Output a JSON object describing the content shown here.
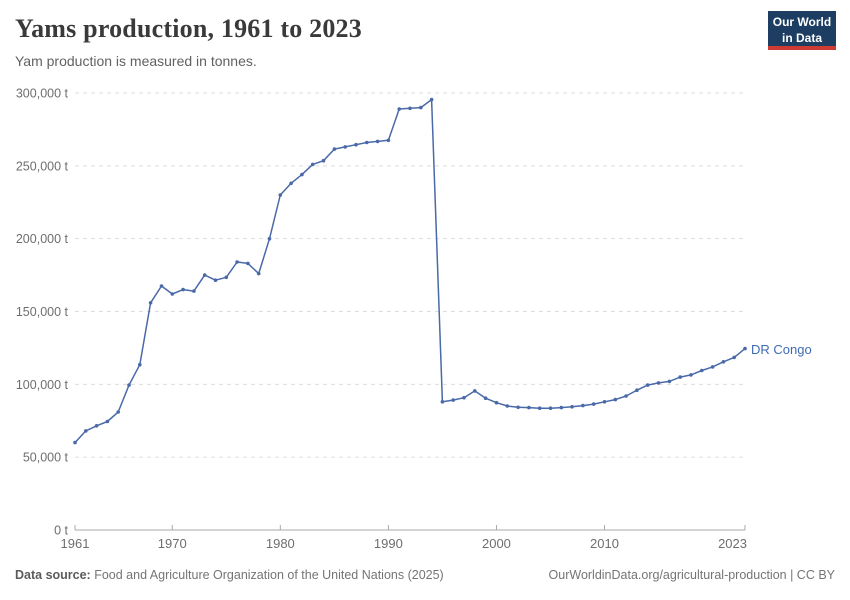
{
  "header": {
    "title": "Yams production, 1961 to 2023",
    "subtitle": "Yam production is measured in tonnes.",
    "logo": {
      "line1": "Our World",
      "line2": "in Data",
      "bg_color": "#1d3d63",
      "bar_color": "#cf3a32"
    }
  },
  "chart_data": {
    "type": "line",
    "title": "Yams production, 1961 to 2023",
    "ylabel": "tonnes",
    "xlabel": "",
    "grid": "horizontal-dashed",
    "legend_position": "end-of-line-label",
    "xlim": [
      1961,
      2023
    ],
    "ylim": [
      0,
      300000
    ],
    "x_ticks": [
      1961,
      1970,
      1980,
      1990,
      2000,
      2010,
      2023
    ],
    "y_ticks": [
      0,
      50000,
      100000,
      150000,
      200000,
      250000,
      300000
    ],
    "y_tick_suffix": " t",
    "series": [
      {
        "name": "DR Congo",
        "color": "#4a69a8",
        "x": [
          1961,
          1962,
          1963,
          1964,
          1965,
          1966,
          1967,
          1968,
          1969,
          1970,
          1971,
          1972,
          1973,
          1974,
          1975,
          1976,
          1977,
          1978,
          1979,
          1980,
          1981,
          1982,
          1983,
          1984,
          1985,
          1986,
          1987,
          1988,
          1989,
          1990,
          1991,
          1992,
          1993,
          1994,
          1995,
          1996,
          1997,
          1998,
          1999,
          2000,
          2001,
          2002,
          2003,
          2004,
          2005,
          2006,
          2007,
          2008,
          2009,
          2010,
          2011,
          2012,
          2013,
          2014,
          2015,
          2016,
          2017,
          2018,
          2019,
          2020,
          2021,
          2022,
          2023
        ],
        "values": [
          60000,
          68000,
          71500,
          74500,
          81000,
          99500,
          113500,
          156000,
          167500,
          162000,
          165000,
          164000,
          175000,
          171500,
          173500,
          184000,
          183000,
          176000,
          200000,
          230000,
          238000,
          244000,
          251000,
          253500,
          261500,
          263000,
          264500,
          266000,
          266800,
          267500,
          289000,
          289500,
          290000,
          295500,
          88000,
          89200,
          90800,
          95500,
          90500,
          87400,
          85100,
          84200,
          84000,
          83600,
          83600,
          84000,
          84600,
          85400,
          86400,
          88000,
          89500,
          92000,
          96000,
          99500,
          101000,
          102000,
          105000,
          106500,
          109500,
          112000,
          115500,
          118500,
          124500
        ]
      }
    ]
  },
  "footer": {
    "source_label": "Data source:",
    "source_text": " Food and Agriculture Organization of the United Nations (2025)",
    "attribution": "OurWorldinData.org/agricultural-production | CC BY"
  },
  "colors": {
    "line": "#4a69a8",
    "entity_label": "#3d6bb3",
    "gridline": "#dcdcdc",
    "axis": "#a8a8a8",
    "tick_label": "#6e6e6e"
  }
}
